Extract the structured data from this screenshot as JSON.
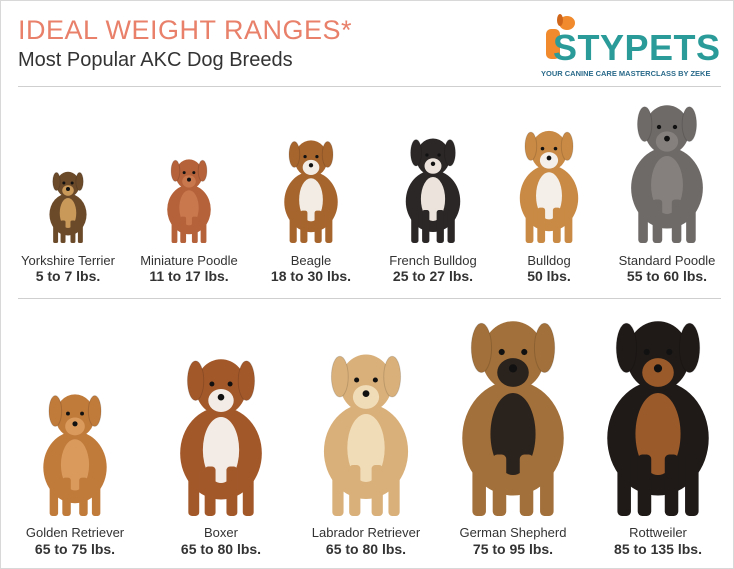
{
  "header": {
    "title": "IDEAL WEIGHT RANGES*",
    "subtitle": "Most Popular AKC Dog Breeds"
  },
  "logo": {
    "brand": "STYPETS",
    "tagline": "YOUR CANINE CARE MASTERCLASS BY ZEKE"
  },
  "rows": [
    [
      {
        "name": "Yorkshire Terrier",
        "weight": "5 to 7 lbs."
      },
      {
        "name": "Miniature Poodle",
        "weight": "11 to 17 lbs."
      },
      {
        "name": "Beagle",
        "weight": "18 to 30 lbs."
      },
      {
        "name": "French Bulldog",
        "weight": "25 to 27 lbs."
      },
      {
        "name": "Bulldog",
        "weight": "50 lbs."
      },
      {
        "name": "Standard Poodle",
        "weight": "55 to 60 lbs."
      }
    ],
    [
      {
        "name": "Golden Retriever",
        "weight": "65 to 75 lbs."
      },
      {
        "name": "Boxer",
        "weight": "65 to 80 lbs."
      },
      {
        "name": "Labrador Retriever",
        "weight": "65 to 80 lbs."
      },
      {
        "name": "German Shepherd",
        "weight": "75 to 95 lbs."
      },
      {
        "name": "Rottweiler",
        "weight": "85 to 135 lbs."
      }
    ]
  ]
}
